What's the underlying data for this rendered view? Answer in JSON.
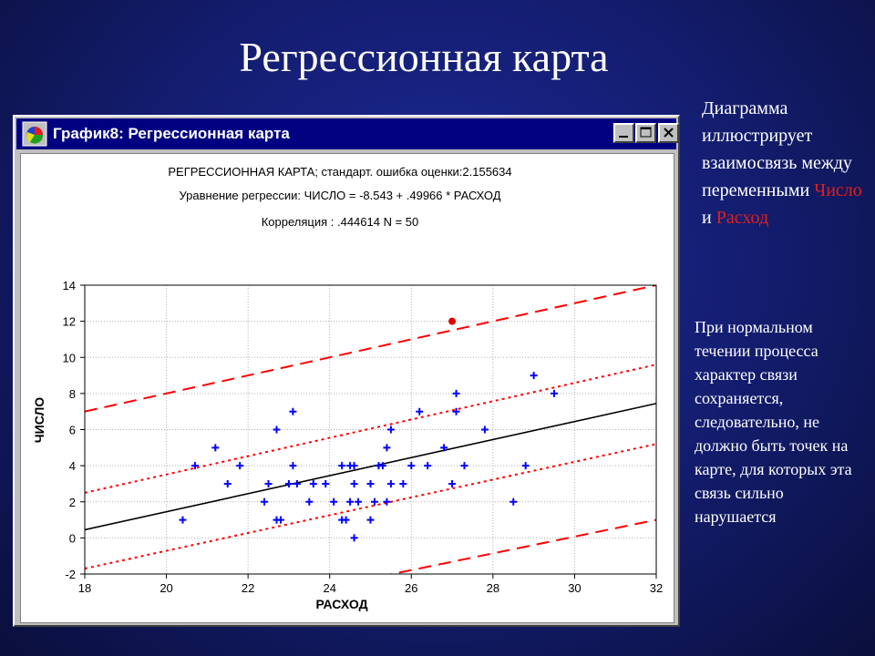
{
  "slide": {
    "title": "Регрессионная карта",
    "description_part1": "Диаграмма иллюстрирует взаимосвязь между переменными",
    "variable_1": "Число",
    "conjunction": "и",
    "variable_2": "Расход",
    "note": "При нормальном течении процесса характер связи сохраняется, следовательно, не должно быть точек на карте, для которых эта связь сильно нарушается"
  },
  "window": {
    "title": "График8: Регрессионная карта",
    "buttons": [
      "minimize",
      "maximize",
      "close"
    ]
  },
  "colors": {
    "title_bar": "#000080",
    "points": "#0000ff",
    "outlier": "#e00000",
    "regression_line": "#000000",
    "bands": "#ff0000"
  },
  "chart_data": {
    "type": "scatter",
    "title": "РЕГРЕССИОННАЯ КАРТА; стандарт. ошибка оценки:2.155634",
    "subtitle": "Уравнение регрессии: ЧИСЛО = -8.543 + .49966 * РАСХОД",
    "subtitle2": "Корреляция : .444614 N = 50",
    "xlabel": "РАСХОД",
    "ylabel": "ЧИСЛО",
    "xlim": [
      18,
      32
    ],
    "ylim": [
      -2,
      14
    ],
    "xticks": [
      18,
      20,
      22,
      24,
      26,
      28,
      30,
      32
    ],
    "yticks": [
      -2,
      0,
      2,
      4,
      6,
      8,
      10,
      12,
      14
    ],
    "grid": true,
    "regression": {
      "intercept": -8.543,
      "slope": 0.49966
    },
    "confidence_band": {
      "lower": [
        [
          18,
          -1.7
        ],
        [
          32,
          5.2
        ]
      ],
      "upper": [
        [
          18,
          2.5
        ],
        [
          32,
          9.6
        ]
      ]
    },
    "prediction_band": {
      "lower": [
        [
          18,
          -5.5
        ],
        [
          32,
          1.0
        ]
      ],
      "upper": [
        [
          18,
          7.0
        ],
        [
          32,
          14.0
        ]
      ]
    },
    "points": [
      [
        20.4,
        1
      ],
      [
        20.7,
        4
      ],
      [
        21.2,
        5
      ],
      [
        21.5,
        3
      ],
      [
        21.8,
        4
      ],
      [
        22.4,
        2
      ],
      [
        22.5,
        3
      ],
      [
        22.7,
        1
      ],
      [
        22.7,
        6
      ],
      [
        22.8,
        1
      ],
      [
        23.0,
        3
      ],
      [
        23.1,
        7
      ],
      [
        23.1,
        4
      ],
      [
        23.2,
        3
      ],
      [
        23.5,
        2
      ],
      [
        23.6,
        3
      ],
      [
        24.3,
        1
      ],
      [
        24.3,
        4
      ],
      [
        24.4,
        1
      ],
      [
        24.5,
        2
      ],
      [
        24.5,
        4
      ],
      [
        24.6,
        0
      ],
      [
        24.6,
        3
      ],
      [
        24.6,
        4
      ],
      [
        24.7,
        2
      ],
      [
        25.0,
        1
      ],
      [
        25.1,
        2
      ],
      [
        25.2,
        4
      ],
      [
        25.3,
        4
      ],
      [
        25.4,
        5
      ],
      [
        25.4,
        2
      ],
      [
        25.5,
        6
      ],
      [
        25.5,
        3
      ],
      [
        25.8,
        3
      ],
      [
        26.2,
        7
      ],
      [
        26.4,
        4
      ],
      [
        26.8,
        5
      ],
      [
        27.0,
        3
      ],
      [
        27.1,
        7
      ],
      [
        27.1,
        8
      ],
      [
        27.8,
        6
      ],
      [
        28.5,
        2
      ],
      [
        28.8,
        4
      ],
      [
        29.0,
        9
      ],
      [
        29.5,
        8
      ],
      [
        25.0,
        3
      ],
      [
        24.1,
        2
      ],
      [
        26.0,
        4
      ],
      [
        23.9,
        3
      ],
      [
        27.3,
        4
      ]
    ],
    "outlier": [
      27.0,
      12
    ]
  }
}
